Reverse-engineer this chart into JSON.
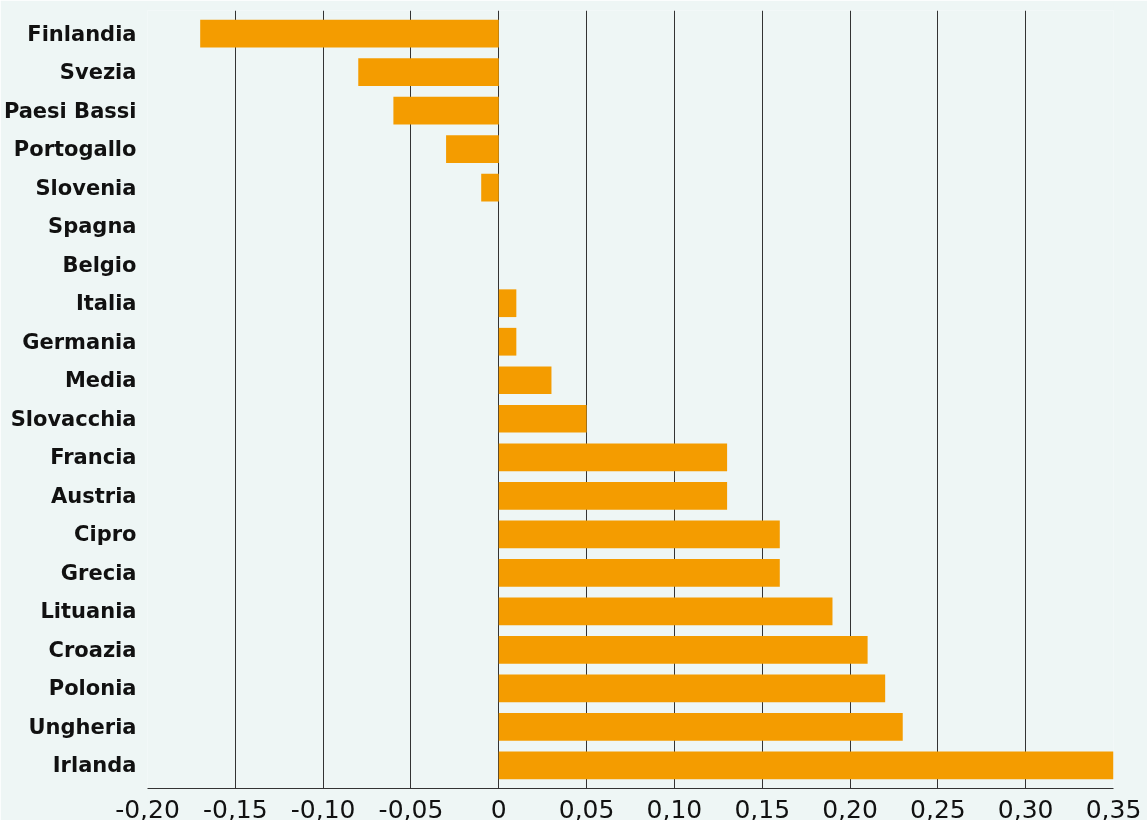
{
  "chart_data": {
    "type": "bar",
    "orientation": "horizontal",
    "categories": [
      "Finlandia",
      "Svezia",
      "Paesi Bassi",
      "Portogallo",
      "Slovenia",
      "Spagna",
      "Belgio",
      "Italia",
      "Germania",
      "Media",
      "Slovacchia",
      "Francia",
      "Austria",
      "Cipro",
      "Grecia",
      "Lituania",
      "Croazia",
      "Polonia",
      "Ungheria",
      "Irlanda"
    ],
    "values": [
      -0.17,
      -0.08,
      -0.06,
      -0.03,
      -0.01,
      0,
      0,
      0.01,
      0.01,
      0.03,
      0.05,
      0.13,
      0.13,
      0.16,
      0.16,
      0.19,
      0.21,
      0.22,
      0.23,
      0.35
    ],
    "color": "#f49c00",
    "xlim": [
      -0.2,
      0.35
    ],
    "xticks": [
      {
        "value": -0.2,
        "label": "-0,20"
      },
      {
        "value": -0.15,
        "label": "-0,15"
      },
      {
        "value": -0.1,
        "label": "-0,10"
      },
      {
        "value": -0.05,
        "label": "-0,05"
      },
      0,
      {
        "value": 0.05,
        "label": "0,05"
      },
      {
        "value": 0.1,
        "label": "0,10"
      },
      {
        "value": 0.15,
        "label": "0,15"
      },
      {
        "value": 0.2,
        "label": "0,20"
      },
      {
        "value": 0.25,
        "label": "0,25"
      },
      {
        "value": 0.3,
        "label": "0,30"
      },
      {
        "value": 0.35,
        "label": "0,35"
      }
    ],
    "grid": "x"
  }
}
